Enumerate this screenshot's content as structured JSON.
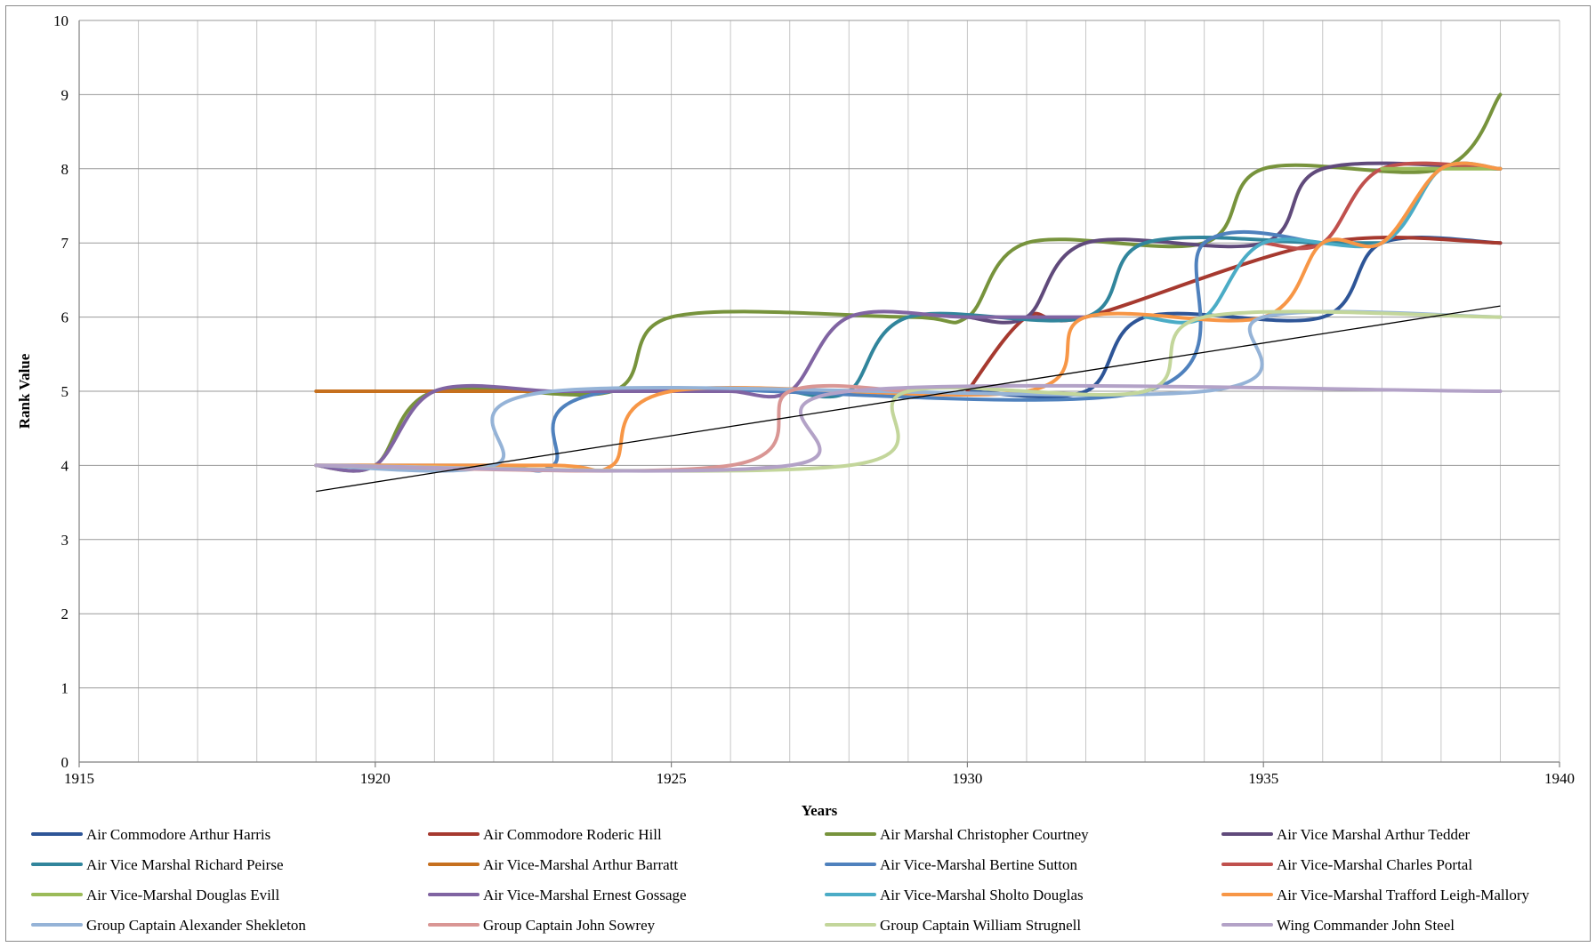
{
  "chart_data": {
    "type": "line",
    "title": "",
    "xlabel": "Years",
    "ylabel": "Rank Value",
    "xlim": [
      1915,
      1940
    ],
    "ylim": [
      0,
      10
    ],
    "x_ticks": [
      1915,
      1920,
      1925,
      1930,
      1935,
      1940
    ],
    "y_ticks": [
      0,
      1,
      2,
      3,
      4,
      5,
      6,
      7,
      8,
      9,
      10
    ],
    "grid": true,
    "legend_position": "bottom",
    "smooth": true,
    "series": [
      {
        "name": "Air Commodore Arthur Harris",
        "color": "#2E5597",
        "points": [
          [
            1930,
            5
          ],
          [
            1932,
            5
          ],
          [
            1933,
            6
          ],
          [
            1936,
            6
          ],
          [
            1937,
            7
          ],
          [
            1939,
            7
          ]
        ]
      },
      {
        "name": "Air Commodore Roderic Hill",
        "color": "#A6392F",
        "points": [
          [
            1930,
            5
          ],
          [
            1931,
            6
          ],
          [
            1932,
            6
          ],
          [
            1936,
            7
          ],
          [
            1939,
            7
          ]
        ]
      },
      {
        "name": "Air Marshal Christopher Courtney",
        "color": "#77933C",
        "points": [
          [
            1919,
            4
          ],
          [
            1920,
            4
          ],
          [
            1921,
            5
          ],
          [
            1924,
            5
          ],
          [
            1925,
            6
          ],
          [
            1929,
            6
          ],
          [
            1930,
            6
          ],
          [
            1931,
            7
          ],
          [
            1934,
            7
          ],
          [
            1935,
            8
          ],
          [
            1938,
            8
          ],
          [
            1939,
            9
          ]
        ]
      },
      {
        "name": "Air Vice Marshal Arthur Tedder",
        "color": "#604A7B",
        "points": [
          [
            1930,
            6
          ],
          [
            1931,
            6
          ],
          [
            1932,
            7
          ],
          [
            1935,
            7
          ],
          [
            1936,
            8
          ],
          [
            1939,
            8
          ]
        ]
      },
      {
        "name": "Air Vice Marshal Richard Peirse",
        "color": "#31859C",
        "points": [
          [
            1927,
            5
          ],
          [
            1928,
            5
          ],
          [
            1929,
            6
          ],
          [
            1932,
            6
          ],
          [
            1933,
            7
          ],
          [
            1936,
            7
          ],
          [
            1937,
            7
          ]
        ]
      },
      {
        "name": "Air Vice-Marshal Arthur Barratt",
        "color": "#C6701E",
        "points": [
          [
            1919,
            5
          ],
          [
            1924,
            5
          ]
        ]
      },
      {
        "name": "Air Vice-Marshal Bertine Sutton",
        "color": "#4F81BD",
        "points": [
          [
            1919,
            4
          ],
          [
            1922,
            4
          ],
          [
            1923,
            4
          ],
          [
            1924,
            5
          ],
          [
            1933,
            5
          ],
          [
            1934,
            7
          ],
          [
            1936,
            7
          ]
        ]
      },
      {
        "name": "Air Vice-Marshal Charles Portal",
        "color": "#C0504D",
        "points": [
          [
            1935,
            7
          ],
          [
            1936,
            7
          ],
          [
            1937,
            8
          ],
          [
            1939,
            8
          ]
        ]
      },
      {
        "name": "Air Vice-Marshal Douglas Evill",
        "color": "#9BBB59",
        "points": [
          [
            1937,
            8
          ],
          [
            1938,
            8
          ],
          [
            1939,
            8
          ]
        ]
      },
      {
        "name": "Air Vice-Marshal Ernest Gossage",
        "color": "#8064A2",
        "points": [
          [
            1919,
            4
          ],
          [
            1920,
            4
          ],
          [
            1921,
            5
          ],
          [
            1923,
            5
          ],
          [
            1924,
            5
          ],
          [
            1925,
            5
          ],
          [
            1926,
            5
          ],
          [
            1927,
            5
          ],
          [
            1928,
            6
          ],
          [
            1930,
            6
          ],
          [
            1932,
            6
          ]
        ]
      },
      {
        "name": "Air Vice-Marshal Sholto Douglas",
        "color": "#4BACC6",
        "points": [
          [
            1933,
            6
          ],
          [
            1934,
            6
          ],
          [
            1935,
            7
          ],
          [
            1937,
            7
          ],
          [
            1938,
            8
          ],
          [
            1939,
            8
          ]
        ]
      },
      {
        "name": "Air Vice-Marshal Trafford Leigh-Mallory",
        "color": "#F79646",
        "points": [
          [
            1919,
            4
          ],
          [
            1923,
            4
          ],
          [
            1924,
            4
          ],
          [
            1925,
            5
          ],
          [
            1931,
            5
          ],
          [
            1932,
            6
          ],
          [
            1935,
            6
          ],
          [
            1936,
            7
          ],
          [
            1937,
            7
          ],
          [
            1938,
            8
          ],
          [
            1939,
            8
          ]
        ]
      },
      {
        "name": "Group Captain Alexander Shekleton",
        "color": "#95B3D7",
        "points": [
          [
            1919,
            4
          ],
          [
            1922,
            4
          ],
          [
            1923,
            5
          ],
          [
            1934,
            5
          ],
          [
            1935,
            6
          ],
          [
            1939,
            6
          ]
        ]
      },
      {
        "name": "Group Captain John Sowrey",
        "color": "#D99694",
        "points": [
          [
            1919,
            4
          ],
          [
            1926,
            4
          ],
          [
            1927,
            5
          ],
          [
            1929,
            5
          ]
        ]
      },
      {
        "name": "Group Captain William Strugnell",
        "color": "#C3D69B",
        "points": [
          [
            1919,
            4
          ],
          [
            1928,
            4
          ],
          [
            1929,
            5
          ],
          [
            1933,
            5
          ],
          [
            1934,
            6
          ],
          [
            1939,
            6
          ]
        ]
      },
      {
        "name": "Wing Commander John Steel",
        "color": "#B3A2C7",
        "points": [
          [
            1919,
            4
          ],
          [
            1927,
            4
          ],
          [
            1928,
            5
          ],
          [
            1939,
            5
          ]
        ]
      }
    ],
    "trendline": {
      "color": "#000000",
      "points": [
        [
          1919,
          3.65
        ],
        [
          1939,
          6.15
        ]
      ]
    }
  }
}
